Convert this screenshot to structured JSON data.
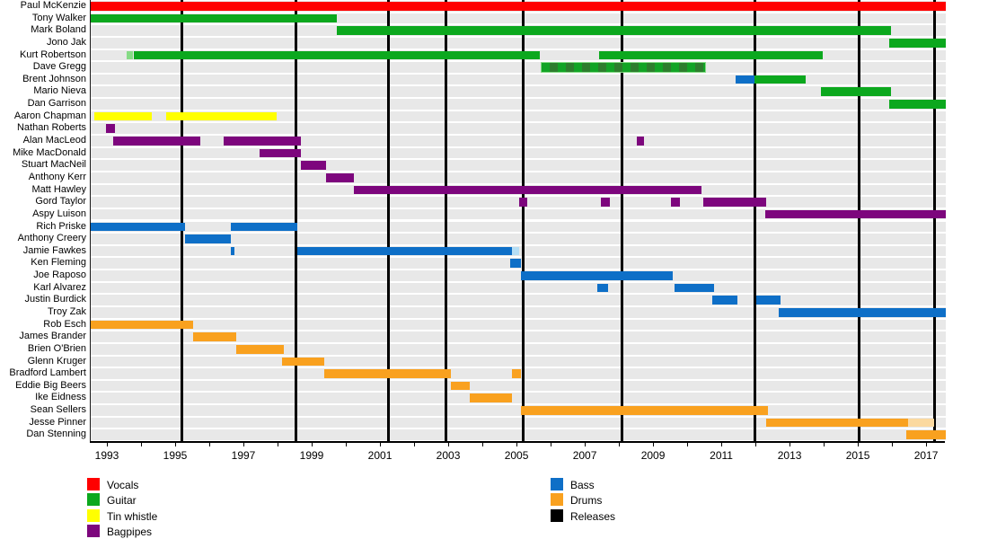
{
  "chart_data": {
    "type": "timeline",
    "description": "Band member timeline (gantt-style) with instrument roles and release markers",
    "x_axis": {
      "min": 1992.5,
      "max": 2017.55,
      "labeled_ticks": [
        1993,
        1995,
        1997,
        1999,
        2001,
        2003,
        2005,
        2007,
        2009,
        2011,
        2013,
        2015,
        2017
      ],
      "minor_tick_every": 1
    },
    "row_count": 36,
    "colors": {
      "vocals": "#FF0000",
      "guitar": "#0CA81E",
      "tin_whistle": "#FFFF00",
      "bagpipes": "#7D067D",
      "bass": "#0E6FC7",
      "drums": "#F9A11F",
      "guitar_light": "#86DB86",
      "bass_light": "#B5DEF5",
      "drums_light": "#FBD9A0",
      "guitar_session_a": "#12A426",
      "guitar_session_b": "#2E7D2E",
      "release": "#000000",
      "row_background": "#E8E8E8"
    },
    "releases": [
      1995.15,
      1998.5,
      2001.2,
      2002.9,
      2005.15,
      2008.05,
      2011.95,
      2015.0,
      2017.2
    ],
    "members": [
      {
        "name": "Paul McKenzie",
        "segments": [
          {
            "start": 1992.5,
            "end": 2017.55,
            "role": "vocals"
          }
        ]
      },
      {
        "name": "Tony Walker",
        "segments": [
          {
            "start": 1992.5,
            "end": 1999.7,
            "role": "guitar"
          }
        ]
      },
      {
        "name": "Mark Boland",
        "segments": [
          {
            "start": 1999.7,
            "end": 2015.95,
            "role": "guitar"
          }
        ]
      },
      {
        "name": "Jono Jak",
        "segments": [
          {
            "start": 2015.9,
            "end": 2017.55,
            "role": "guitar"
          }
        ]
      },
      {
        "name": "Kurt Robertson",
        "segments": [
          {
            "start": 1993.55,
            "end": 1993.75,
            "role": "guitar_light"
          },
          {
            "start": 1993.75,
            "end": 2005.65,
            "role": "guitar"
          },
          {
            "start": 2007.4,
            "end": 2013.95,
            "role": "guitar"
          }
        ]
      },
      {
        "name": "Dave Gregg",
        "segments": [
          {
            "start": 2005.7,
            "end": 2010.5,
            "role": "guitar_session"
          }
        ]
      },
      {
        "name": "Brent Johnson",
        "segments": [
          {
            "start": 2011.4,
            "end": 2011.95,
            "role": "bass"
          },
          {
            "start": 2011.95,
            "end": 2013.45,
            "role": "guitar"
          }
        ]
      },
      {
        "name": "Mario Nieva",
        "segments": [
          {
            "start": 2013.9,
            "end": 2015.95,
            "role": "guitar"
          }
        ]
      },
      {
        "name": "Dan Garrison",
        "segments": [
          {
            "start": 2015.9,
            "end": 2017.55,
            "role": "guitar"
          }
        ]
      },
      {
        "name": "Aaron Chapman",
        "segments": [
          {
            "start": 1992.6,
            "end": 1994.3,
            "role": "tin_whistle"
          },
          {
            "start": 1994.7,
            "end": 1997.95,
            "role": "tin_whistle"
          }
        ]
      },
      {
        "name": "Nathan Roberts",
        "segments": [
          {
            "start": 1992.95,
            "end": 1993.2,
            "role": "bagpipes"
          }
        ]
      },
      {
        "name": "Alan MacLeod",
        "segments": [
          {
            "start": 1993.15,
            "end": 1995.7,
            "role": "bagpipes"
          },
          {
            "start": 1996.4,
            "end": 1998.65,
            "role": "bagpipes"
          },
          {
            "start": 2008.5,
            "end": 2008.7,
            "role": "bagpipes"
          }
        ]
      },
      {
        "name": "Mike MacDonald",
        "segments": [
          {
            "start": 1997.45,
            "end": 1998.65,
            "role": "bagpipes"
          }
        ]
      },
      {
        "name": "Stuart MacNeil",
        "segments": [
          {
            "start": 1998.65,
            "end": 1999.4,
            "role": "bagpipes"
          }
        ]
      },
      {
        "name": "Anthony Kerr",
        "segments": [
          {
            "start": 1999.4,
            "end": 2000.2,
            "role": "bagpipes"
          }
        ]
      },
      {
        "name": "Matt Hawley",
        "segments": [
          {
            "start": 2000.2,
            "end": 2010.4,
            "role": "bagpipes"
          }
        ]
      },
      {
        "name": "Gord Taylor",
        "segments": [
          {
            "start": 2005.05,
            "end": 2005.3,
            "role": "bagpipes"
          },
          {
            "start": 2007.45,
            "end": 2007.7,
            "role": "bagpipes"
          },
          {
            "start": 2009.5,
            "end": 2009.75,
            "role": "bagpipes"
          },
          {
            "start": 2010.45,
            "end": 2012.3,
            "role": "bagpipes"
          }
        ]
      },
      {
        "name": "Aspy Luison",
        "segments": [
          {
            "start": 2012.25,
            "end": 2017.55,
            "role": "bagpipes"
          }
        ]
      },
      {
        "name": "Rich Priske",
        "segments": [
          {
            "start": 1992.5,
            "end": 1995.25,
            "role": "bass"
          },
          {
            "start": 1996.6,
            "end": 1998.55,
            "role": "bass"
          }
        ]
      },
      {
        "name": "Anthony Creery",
        "segments": [
          {
            "start": 1995.25,
            "end": 1996.6,
            "role": "bass"
          }
        ]
      },
      {
        "name": "Jamie Fawkes",
        "segments": [
          {
            "start": 1996.6,
            "end": 1996.72,
            "role": "bass"
          },
          {
            "start": 1998.55,
            "end": 2004.85,
            "role": "bass"
          },
          {
            "start": 2004.85,
            "end": 2005.05,
            "role": "bass_light"
          }
        ]
      },
      {
        "name": "Ken Fleming",
        "segments": [
          {
            "start": 2004.8,
            "end": 2005.1,
            "role": "bass"
          }
        ]
      },
      {
        "name": "Joe Raposo",
        "segments": [
          {
            "start": 2005.1,
            "end": 2009.55,
            "role": "bass"
          }
        ]
      },
      {
        "name": "Karl Alvarez",
        "segments": [
          {
            "start": 2007.35,
            "end": 2007.65,
            "role": "bass"
          },
          {
            "start": 2009.6,
            "end": 2010.75,
            "role": "bass"
          }
        ]
      },
      {
        "name": "Justin Burdick",
        "segments": [
          {
            "start": 2010.7,
            "end": 2011.45,
            "role": "bass"
          },
          {
            "start": 2012.0,
            "end": 2012.7,
            "role": "bass"
          }
        ]
      },
      {
        "name": "Troy Zak",
        "segments": [
          {
            "start": 2012.65,
            "end": 2017.55,
            "role": "bass"
          }
        ]
      },
      {
        "name": "Rob Esch",
        "segments": [
          {
            "start": 1992.5,
            "end": 1995.5,
            "role": "drums"
          }
        ]
      },
      {
        "name": "James Brander",
        "segments": [
          {
            "start": 1995.5,
            "end": 1996.75,
            "role": "drums"
          }
        ]
      },
      {
        "name": "Brien O'Brien",
        "segments": [
          {
            "start": 1996.75,
            "end": 1998.15,
            "role": "drums"
          }
        ]
      },
      {
        "name": "Glenn Kruger",
        "segments": [
          {
            "start": 1998.1,
            "end": 1999.35,
            "role": "drums"
          }
        ]
      },
      {
        "name": "Bradford Lambert",
        "segments": [
          {
            "start": 1999.35,
            "end": 2003.05,
            "role": "drums"
          },
          {
            "start": 2004.85,
            "end": 2005.1,
            "role": "drums"
          }
        ]
      },
      {
        "name": "Eddie Big Beers",
        "segments": [
          {
            "start": 2003.05,
            "end": 2003.6,
            "role": "drums"
          }
        ]
      },
      {
        "name": "Ike Eidness",
        "segments": [
          {
            "start": 2003.6,
            "end": 2004.85,
            "role": "drums"
          }
        ]
      },
      {
        "name": "Sean Sellers",
        "segments": [
          {
            "start": 2005.1,
            "end": 2012.35,
            "role": "drums"
          }
        ]
      },
      {
        "name": "Jesse Pinner",
        "segments": [
          {
            "start": 2012.3,
            "end": 2016.45,
            "role": "drums"
          },
          {
            "start": 2016.45,
            "end": 2017.2,
            "role": "drums_light"
          }
        ]
      },
      {
        "name": "Dan Stenning",
        "segments": [
          {
            "start": 2016.4,
            "end": 2017.55,
            "role": "drums"
          }
        ]
      }
    ],
    "legend": {
      "column1": [
        {
          "label": "Vocals",
          "role": "vocals"
        },
        {
          "label": "Guitar",
          "role": "guitar"
        },
        {
          "label": "Tin whistle",
          "role": "tin_whistle"
        },
        {
          "label": "Bagpipes",
          "role": "bagpipes"
        }
      ],
      "column2": [
        {
          "label": "Bass",
          "role": "bass"
        },
        {
          "label": "Drums",
          "role": "drums"
        },
        {
          "label": "Releases",
          "role": "release"
        }
      ]
    }
  }
}
